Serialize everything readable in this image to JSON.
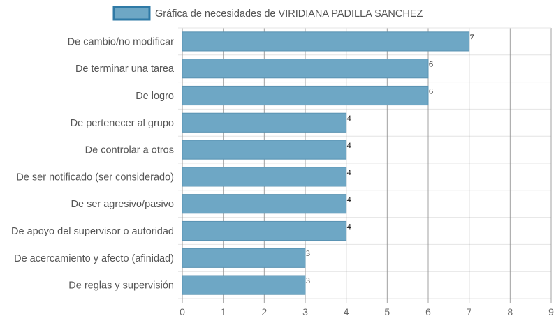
{
  "chart_data": {
    "type": "bar",
    "orientation": "horizontal",
    "categories": [
      "De cambio/no modificar",
      "De terminar una tarea",
      "De logro",
      "De pertenecer al grupo",
      "De controlar a otros",
      "De ser notificado (ser considerado)",
      "De ser agresivo/pasivo",
      "De apoyo del supervisor o autoridad",
      "De acercamiento y afecto (afinidad)",
      "De reglas y supervisión"
    ],
    "series": [
      {
        "name": "Gráfica de necesidades de VIRIDIANA PADILLA SANCHEZ",
        "values": [
          7,
          6,
          6,
          4,
          4,
          4,
          4,
          4,
          3,
          3
        ]
      }
    ],
    "title": "",
    "xlabel": "",
    "ylabel": "",
    "xlim": [
      0,
      9
    ],
    "xticks": [
      "0",
      "1",
      "2",
      "3",
      "4",
      "5",
      "6",
      "7",
      "8",
      "9"
    ],
    "grid": true,
    "legend_position": "top",
    "data_labels": true,
    "colors": {
      "bar_fill": "#6ea7c5",
      "bar_stroke": "#5a93b2",
      "legend_fill": "#6ea7c5",
      "legend_stroke": "#2f7aa6",
      "grid": "#e4e4e4",
      "grid_major": "#999999"
    }
  }
}
